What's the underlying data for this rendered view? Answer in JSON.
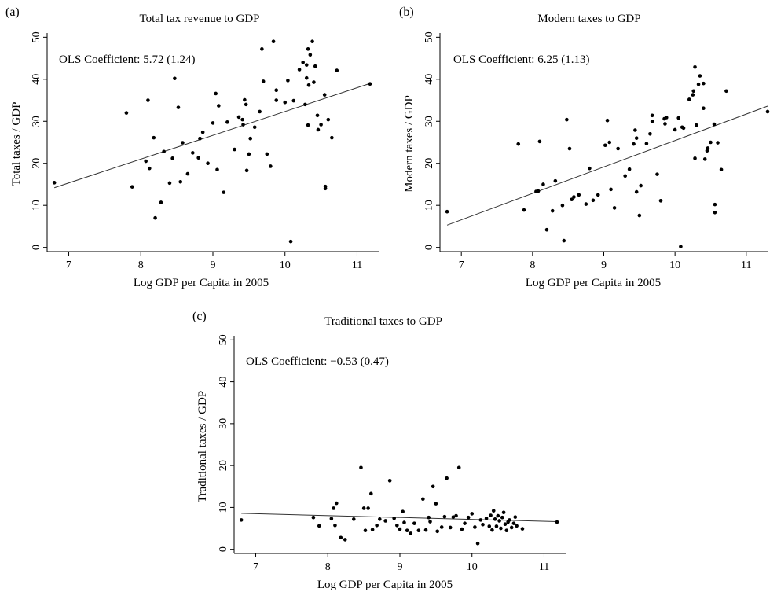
{
  "figure": {
    "panels": [
      "(a)",
      "(b)",
      "(c)"
    ]
  },
  "chart_data": [
    {
      "type": "scatter",
      "panel": "(a)",
      "title": "Total tax revenue to GDP",
      "xlabel": "Log GDP per Capita in 2005",
      "ylabel": "Total taxes / GDP",
      "annotation": "OLS Coefficient: 5.72 (1.24)",
      "xlim": [
        6.7,
        11.3
      ],
      "ylim": [
        -1,
        51
      ],
      "xticks": [
        7,
        8,
        9,
        10,
        11
      ],
      "yticks": [
        0,
        10,
        20,
        30,
        40,
        50
      ],
      "fit": {
        "x": [
          6.8,
          11.18
        ],
        "y": [
          14.2,
          39.0
        ]
      },
      "points": [
        [
          6.8,
          15.4
        ],
        [
          7.8,
          32.0
        ],
        [
          7.88,
          14.4
        ],
        [
          8.07,
          20.5
        ],
        [
          8.1,
          35.0
        ],
        [
          8.12,
          18.8
        ],
        [
          8.18,
          26.1
        ],
        [
          8.2,
          7.0
        ],
        [
          8.28,
          10.7
        ],
        [
          8.32,
          22.8
        ],
        [
          8.4,
          15.3
        ],
        [
          8.44,
          21.2
        ],
        [
          8.47,
          40.2
        ],
        [
          8.52,
          33.3
        ],
        [
          8.55,
          15.6
        ],
        [
          8.58,
          24.9
        ],
        [
          8.65,
          17.5
        ],
        [
          8.72,
          22.5
        ],
        [
          8.8,
          21.3
        ],
        [
          8.82,
          25.9
        ],
        [
          8.86,
          27.4
        ],
        [
          8.93,
          20.0
        ],
        [
          9.0,
          29.6
        ],
        [
          9.04,
          36.6
        ],
        [
          9.06,
          18.5
        ],
        [
          9.08,
          33.7
        ],
        [
          9.15,
          13.1
        ],
        [
          9.2,
          29.8
        ],
        [
          9.3,
          23.3
        ],
        [
          9.36,
          31.0
        ],
        [
          9.41,
          30.4
        ],
        [
          9.42,
          29.2
        ],
        [
          9.44,
          35.1
        ],
        [
          9.47,
          18.3
        ],
        [
          9.46,
          34.0
        ],
        [
          9.5,
          22.2
        ],
        [
          9.52,
          25.9
        ],
        [
          9.58,
          28.6
        ],
        [
          9.65,
          32.3
        ],
        [
          9.68,
          47.2
        ],
        [
          9.7,
          39.5
        ],
        [
          9.75,
          22.2
        ],
        [
          9.8,
          19.3
        ],
        [
          9.84,
          49.0
        ],
        [
          9.88,
          37.4
        ],
        [
          9.88,
          35.0
        ],
        [
          10.0,
          34.5
        ],
        [
          10.04,
          39.7
        ],
        [
          10.08,
          1.4
        ],
        [
          10.12,
          34.9
        ],
        [
          10.2,
          42.3
        ],
        [
          10.25,
          44.0
        ],
        [
          10.3,
          43.4
        ],
        [
          10.3,
          40.3
        ],
        [
          10.32,
          47.2
        ],
        [
          10.32,
          29.1
        ],
        [
          10.33,
          38.6
        ],
        [
          10.35,
          45.8
        ],
        [
          10.38,
          49.0
        ],
        [
          10.4,
          39.3
        ],
        [
          10.42,
          43.1
        ],
        [
          10.45,
          31.4
        ],
        [
          10.46,
          28.0
        ],
        [
          10.5,
          29.2
        ],
        [
          10.55,
          36.3
        ],
        [
          10.56,
          14.5
        ],
        [
          10.56,
          14.0
        ],
        [
          10.6,
          30.4
        ],
        [
          10.65,
          26.1
        ],
        [
          10.72,
          42.1
        ],
        [
          11.18,
          38.9
        ],
        [
          10.28,
          34.0
        ]
      ]
    },
    {
      "type": "scatter",
      "panel": "(b)",
      "title": "Modern taxes to GDP",
      "xlabel": "Log GDP per Capita in 2005",
      "ylabel": "Modern taxes / GDP",
      "annotation": "OLS Coefficient: 6.25 (1.13)",
      "xlim": [
        6.7,
        11.3
      ],
      "ylim": [
        -1,
        51
      ],
      "xticks": [
        7,
        8,
        9,
        10,
        11
      ],
      "yticks": [
        0,
        10,
        20,
        30,
        40,
        50
      ],
      "fit": {
        "x": [
          6.8,
          11.3
        ],
        "y": [
          5.3,
          33.6
        ]
      },
      "points": [
        [
          6.8,
          8.5
        ],
        [
          7.8,
          24.6
        ],
        [
          7.88,
          8.9
        ],
        [
          8.05,
          13.3
        ],
        [
          8.1,
          25.2
        ],
        [
          8.08,
          13.4
        ],
        [
          8.15,
          15.0
        ],
        [
          8.2,
          4.2
        ],
        [
          8.28,
          8.7
        ],
        [
          8.32,
          15.8
        ],
        [
          8.42,
          10.0
        ],
        [
          8.44,
          1.6
        ],
        [
          8.48,
          30.4
        ],
        [
          8.52,
          23.5
        ],
        [
          8.55,
          11.4
        ],
        [
          8.58,
          12.0
        ],
        [
          8.65,
          12.5
        ],
        [
          8.75,
          10.3
        ],
        [
          8.8,
          18.8
        ],
        [
          8.85,
          11.2
        ],
        [
          8.92,
          12.5
        ],
        [
          9.02,
          24.3
        ],
        [
          9.05,
          30.2
        ],
        [
          9.08,
          25.0
        ],
        [
          9.1,
          13.8
        ],
        [
          9.15,
          9.4
        ],
        [
          9.2,
          23.5
        ],
        [
          9.3,
          17.0
        ],
        [
          9.36,
          18.6
        ],
        [
          9.42,
          24.6
        ],
        [
          9.44,
          27.9
        ],
        [
          9.46,
          13.2
        ],
        [
          9.46,
          26.0
        ],
        [
          9.5,
          7.6
        ],
        [
          9.52,
          14.7
        ],
        [
          9.6,
          24.7
        ],
        [
          9.65,
          27.0
        ],
        [
          9.68,
          31.4
        ],
        [
          9.68,
          30.0
        ],
        [
          9.75,
          17.4
        ],
        [
          9.8,
          11.1
        ],
        [
          9.85,
          30.6
        ],
        [
          9.86,
          29.4
        ],
        [
          9.88,
          30.9
        ],
        [
          10.0,
          28.0
        ],
        [
          10.05,
          30.8
        ],
        [
          10.08,
          0.2
        ],
        [
          10.1,
          28.6
        ],
        [
          10.12,
          28.4
        ],
        [
          10.2,
          35.2
        ],
        [
          10.25,
          36.3
        ],
        [
          10.26,
          37.2
        ],
        [
          10.28,
          42.9
        ],
        [
          10.3,
          29.1
        ],
        [
          10.33,
          38.8
        ],
        [
          10.35,
          40.8
        ],
        [
          10.4,
          33.1
        ],
        [
          10.4,
          39.0
        ],
        [
          10.42,
          21.0
        ],
        [
          10.45,
          23.0
        ],
        [
          10.46,
          23.6
        ],
        [
          10.5,
          25.0
        ],
        [
          10.55,
          29.3
        ],
        [
          10.56,
          10.2
        ],
        [
          10.56,
          8.3
        ],
        [
          10.6,
          24.9
        ],
        [
          10.65,
          18.5
        ],
        [
          10.72,
          37.2
        ],
        [
          11.3,
          32.3
        ],
        [
          10.28,
          21.2
        ]
      ]
    },
    {
      "type": "scatter",
      "panel": "(c)",
      "title": "Traditional taxes to GDP",
      "xlabel": "Log GDP per Capita in 2005",
      "ylabel": "Traditional taxes / GDP",
      "annotation": "OLS Coefficient: −0.53 (0.47)",
      "xlim": [
        6.7,
        11.3
      ],
      "ylim": [
        -1,
        51
      ],
      "xticks": [
        7,
        8,
        9,
        10,
        11
      ],
      "yticks": [
        0,
        10,
        20,
        30,
        40,
        50
      ],
      "fit": {
        "x": [
          6.8,
          11.18
        ],
        "y": [
          8.6,
          6.6
        ]
      },
      "points": [
        [
          6.8,
          7.0
        ],
        [
          7.8,
          7.6
        ],
        [
          7.88,
          5.6
        ],
        [
          8.05,
          7.3
        ],
        [
          8.08,
          9.8
        ],
        [
          8.1,
          5.7
        ],
        [
          8.12,
          11.0
        ],
        [
          8.18,
          2.8
        ],
        [
          8.24,
          2.3
        ],
        [
          8.36,
          7.2
        ],
        [
          8.46,
          19.5
        ],
        [
          8.5,
          9.8
        ],
        [
          8.52,
          4.5
        ],
        [
          8.56,
          9.8
        ],
        [
          8.6,
          13.3
        ],
        [
          8.62,
          4.7
        ],
        [
          8.68,
          5.7
        ],
        [
          8.72,
          7.2
        ],
        [
          8.8,
          6.8
        ],
        [
          8.86,
          16.4
        ],
        [
          8.92,
          7.4
        ],
        [
          8.96,
          5.7
        ],
        [
          9.0,
          4.8
        ],
        [
          9.04,
          9.0
        ],
        [
          9.06,
          6.4
        ],
        [
          9.1,
          4.5
        ],
        [
          9.15,
          3.8
        ],
        [
          9.2,
          6.2
        ],
        [
          9.26,
          4.5
        ],
        [
          9.32,
          12.0
        ],
        [
          9.36,
          4.6
        ],
        [
          9.4,
          7.6
        ],
        [
          9.42,
          6.6
        ],
        [
          9.46,
          15.0
        ],
        [
          9.5,
          10.9
        ],
        [
          9.52,
          4.3
        ],
        [
          9.58,
          5.3
        ],
        [
          9.62,
          7.8
        ],
        [
          9.65,
          17.0
        ],
        [
          9.7,
          5.2
        ],
        [
          9.74,
          7.7
        ],
        [
          9.78,
          8.0
        ],
        [
          9.82,
          19.5
        ],
        [
          9.86,
          4.8
        ],
        [
          9.9,
          6.2
        ],
        [
          9.95,
          7.6
        ],
        [
          10.0,
          8.5
        ],
        [
          10.04,
          5.3
        ],
        [
          10.08,
          1.4
        ],
        [
          10.12,
          7.0
        ],
        [
          10.15,
          5.9
        ],
        [
          10.2,
          7.4
        ],
        [
          10.24,
          5.5
        ],
        [
          10.26,
          8.1
        ],
        [
          10.28,
          4.6
        ],
        [
          10.3,
          9.2
        ],
        [
          10.32,
          7.2
        ],
        [
          10.34,
          5.5
        ],
        [
          10.36,
          8.0
        ],
        [
          10.38,
          6.8
        ],
        [
          10.4,
          5.0
        ],
        [
          10.42,
          7.6
        ],
        [
          10.44,
          8.8
        ],
        [
          10.46,
          6.0
        ],
        [
          10.48,
          4.5
        ],
        [
          10.5,
          6.5
        ],
        [
          10.52,
          7.0
        ],
        [
          10.55,
          5.2
        ],
        [
          10.58,
          6.2
        ],
        [
          10.6,
          7.7
        ],
        [
          10.62,
          5.6
        ],
        [
          10.7,
          4.9
        ],
        [
          11.18,
          6.5
        ]
      ]
    }
  ]
}
